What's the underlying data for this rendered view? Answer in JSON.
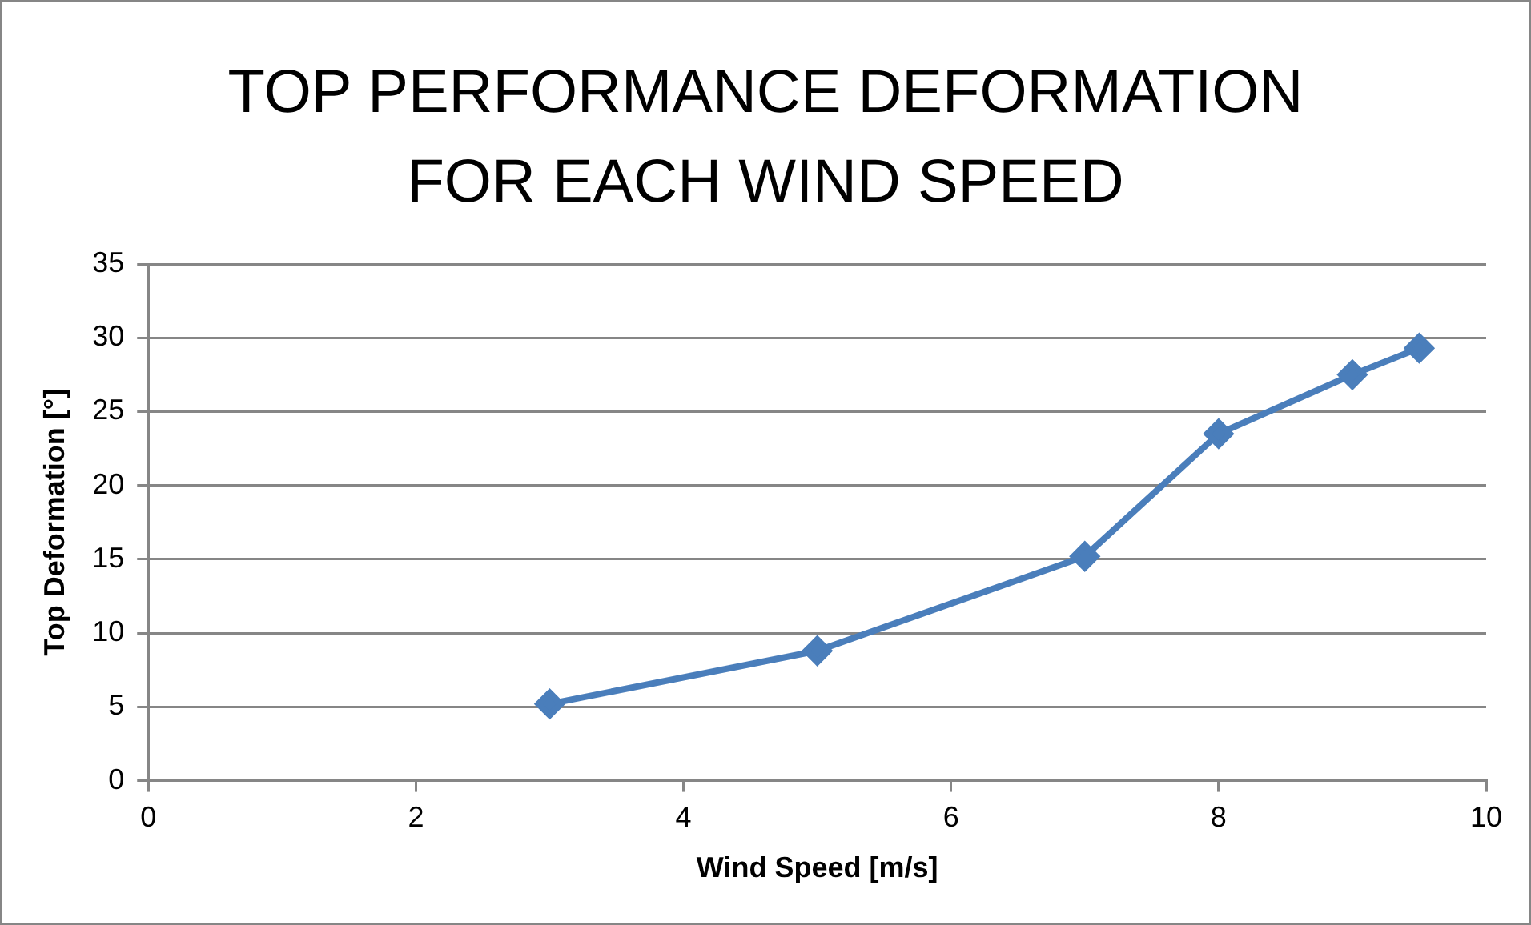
{
  "chart_data": {
    "type": "line",
    "title": "TOP PERFORMANCE DEFORMATION FOR EACH WIND SPEED",
    "xlabel": "Wind Speed [m/s]",
    "ylabel": "Top Deformation [°]",
    "x": [
      3,
      5,
      7,
      8,
      9,
      9.5
    ],
    "series": [
      {
        "color": "#4a7ebb",
        "values": [
          5.2,
          8.8,
          15.2,
          23.5,
          27.5,
          29.3
        ]
      }
    ],
    "xlim": [
      0,
      10
    ],
    "xticks": [
      0,
      2,
      4,
      6,
      8,
      10
    ],
    "ylim": [
      0,
      35
    ],
    "yticks": [
      0,
      5,
      10,
      15,
      20,
      25,
      30,
      35
    ],
    "grid": "y",
    "legend": false,
    "marker": "diamond",
    "line_style": "solid"
  }
}
